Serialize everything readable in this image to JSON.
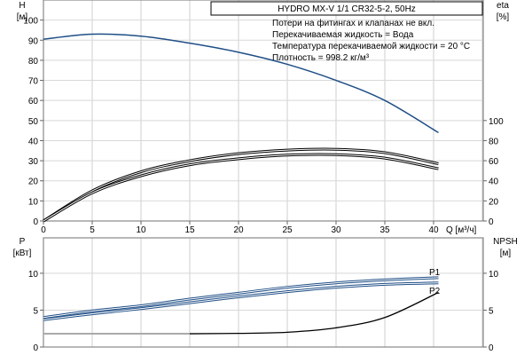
{
  "chart_data": [
    {
      "type": "line",
      "title": "HYDRO MX-V 1/1 CR32-5-2, 50Hz",
      "annotations": [
        "Потери на фитингах и клапанах не вкл.",
        "Перекачиваемая жидкость = Вода",
        "Температура перекачиваемой жидкости = 20 °C",
        "Плотность = 998.2 кг/м³"
      ],
      "xlabel": "Q [м³/ч]",
      "ylabel": "H",
      "ylabel_unit": "[м]",
      "y2label": "eta",
      "y2label_unit": "[%]",
      "xlim": [
        0,
        45
      ],
      "ylim": [
        0,
        110
      ],
      "y2lim": [
        0,
        100
      ],
      "xticks": [
        0,
        5,
        10,
        15,
        20,
        25,
        30,
        35,
        40
      ],
      "yticks": [
        0,
        10,
        20,
        30,
        40,
        50,
        60,
        70,
        80,
        90,
        100
      ],
      "y2ticks": [
        0,
        20,
        40,
        60,
        80,
        100
      ],
      "grid": true,
      "x": [
        0,
        5,
        10,
        15,
        20,
        25,
        30,
        35,
        40.5
      ],
      "series": [
        {
          "axis": "H",
          "color": "#1f4e86",
          "values": [
            90.5,
            93,
            92,
            88.5,
            84,
            78,
            70,
            60,
            44
          ]
        },
        {
          "axis": "eta",
          "color": "#000000",
          "values": [
            0,
            30,
            49,
            60,
            67,
            70.6,
            71.4,
            68,
            57
          ]
        },
        {
          "axis": "eta",
          "color": "#000000",
          "values": [
            0,
            28,
            45,
            56,
            62,
            65.6,
            66,
            62.6,
            52
          ]
        }
      ]
    },
    {
      "type": "line",
      "ylabel": "P",
      "ylabel_unit": "[кВт]",
      "y2label": "NPSH",
      "y2label_unit": "[м]",
      "xlim": [
        0,
        45
      ],
      "ylim": [
        0,
        15
      ],
      "y2lim": [
        0,
        15
      ],
      "yticks": [
        0,
        5,
        10
      ],
      "y2ticks": [
        0,
        5,
        10
      ],
      "grid": true,
      "x": [
        0,
        5,
        10,
        15,
        20,
        25,
        30,
        35,
        40.5
      ],
      "series": [
        {
          "name": "P1",
          "axis": "P",
          "color": "#1f4e86",
          "values": [
            4,
            4.9,
            5.6,
            6.5,
            7.3,
            8.1,
            8.7,
            9.1,
            9.4
          ]
        },
        {
          "name": "P2",
          "axis": "P",
          "color": "#1f4e86",
          "values": [
            3.7,
            4.5,
            5.2,
            6.0,
            6.8,
            7.5,
            8.1,
            8.5,
            8.7
          ]
        },
        {
          "axis": "NPSH",
          "color": "#000000",
          "values": [
            1.8,
            1.8,
            1.8,
            1.8,
            1.85,
            2.0,
            2.6,
            4.0,
            7.4
          ]
        }
      ]
    }
  ]
}
